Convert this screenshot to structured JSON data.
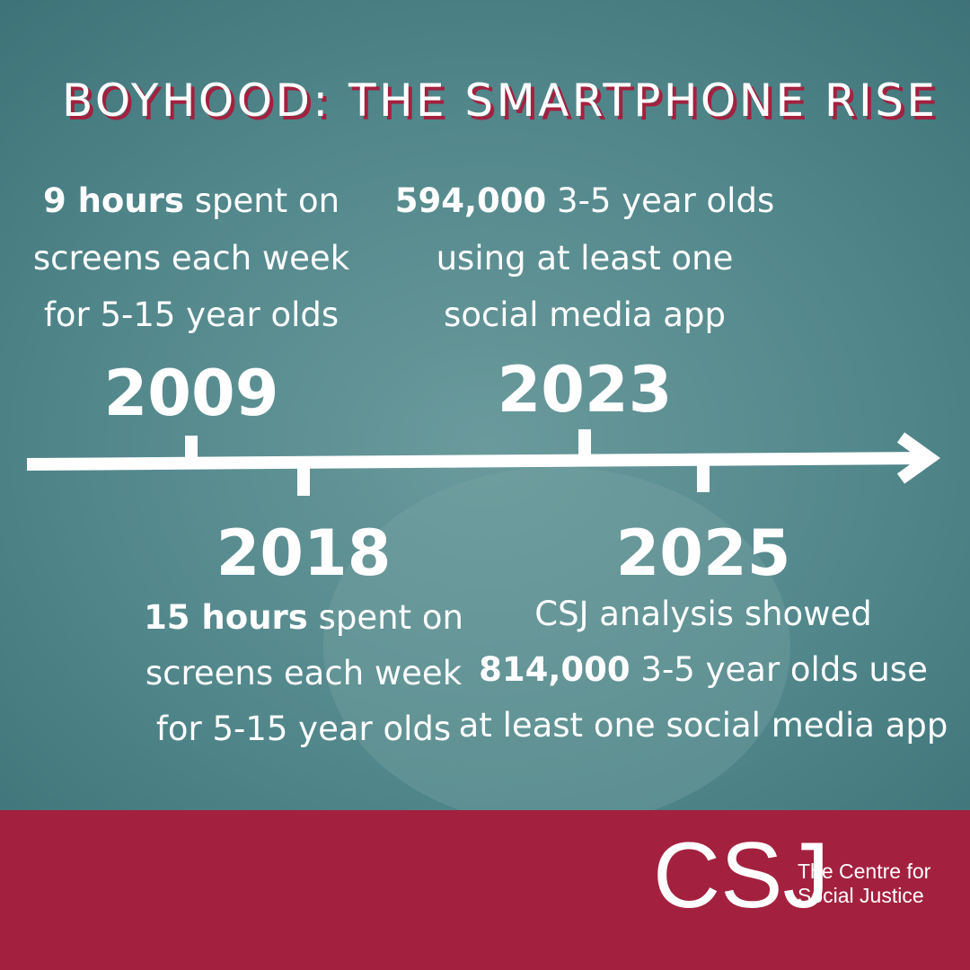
{
  "title": "BOYHOOD: THE SMARTPHONE RISE",
  "events": [
    {
      "year": "2009",
      "lines": [
        [
          {
            "text": "9 hours",
            "bold": true
          },
          {
            "text": " spent on",
            "bold": false
          }
        ],
        [
          {
            "text": "screens each week",
            "bold": false
          }
        ],
        [
          {
            "text": "for 5-15 year olds",
            "bold": false
          }
        ]
      ]
    },
    {
      "year": "2023",
      "lines": [
        [
          {
            "text": "594,000",
            "bold": true
          },
          {
            "text": " 3-5 year olds",
            "bold": false
          }
        ],
        [
          {
            "text": "using at least one",
            "bold": false
          }
        ],
        [
          {
            "text": "social media app",
            "bold": false
          }
        ]
      ]
    },
    {
      "year": "2018",
      "lines": [
        [
          {
            "text": "15 hours",
            "bold": true
          },
          {
            "text": " spent on",
            "bold": false
          }
        ],
        [
          {
            "text": "screens each week",
            "bold": false
          }
        ],
        [
          {
            "text": "for 5-15 year olds",
            "bold": false
          }
        ]
      ]
    },
    {
      "year": "2025",
      "lines": [
        [
          {
            "text": "CSJ analysis showed",
            "bold": false
          }
        ],
        [
          {
            "text": "814,000",
            "bold": true
          },
          {
            "text": " 3-5 year olds use",
            "bold": false
          }
        ],
        [
          {
            "text": "at least one social media app",
            "bold": false
          }
        ]
      ]
    }
  ],
  "logo": {
    "mark": "CSJ",
    "lines": [
      "The Centre for",
      "Social Justice"
    ]
  }
}
